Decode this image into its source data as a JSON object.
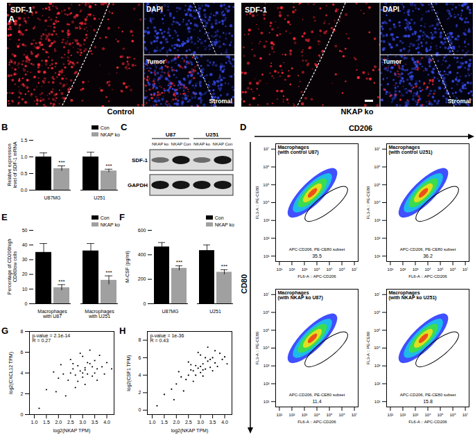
{
  "panel_labels": [
    "A",
    "B",
    "C",
    "D",
    "E",
    "F",
    "G",
    "H"
  ],
  "panel_A": {
    "images": [
      {
        "channel": "SDF-1",
        "inset": "DAPI",
        "regions": [
          "Tumor",
          "Stromal"
        ],
        "caption": "Control"
      },
      {
        "channel": "SDF-1",
        "inset": "DAPI",
        "regions": [
          "Tumor",
          "Stromal"
        ],
        "caption": "NKAP ko"
      }
    ]
  },
  "panel_C": {
    "cell_lines": [
      "U87",
      "U251"
    ],
    "lanes": [
      "NKAP ko",
      "NKAP Con",
      "NKAP ko",
      "NKAP Con"
    ],
    "rows": [
      "SDF-1",
      "GAPDH"
    ]
  },
  "panel_D": {
    "x_marker": "CD206",
    "y_marker": "CD80",
    "xlabel": "FL6-A :: APC-CD206",
    "ylabel": "FL3-A :: PE-CE80",
    "gate": "APC-CD206, PE-CE80 subset",
    "log": true,
    "xlim": [
      5,
      20000000
    ],
    "ylim": [
      5,
      20000000
    ],
    "xticks": [
      {
        "value": 10,
        "label": "10¹"
      },
      {
        "value": 100,
        "label": "10²"
      },
      {
        "value": 1000,
        "label": "10³"
      },
      {
        "value": 10000,
        "label": "10⁴"
      },
      {
        "value": 100000,
        "label": "10⁵"
      },
      {
        "value": 1000000,
        "label": "10⁶"
      },
      {
        "value": 10000000,
        "label": "10⁷"
      }
    ],
    "yticks": [
      {
        "value": 10,
        "label": "10¹"
      },
      {
        "value": 100,
        "label": "10²"
      },
      {
        "value": 1000,
        "label": "10³"
      },
      {
        "value": 10000,
        "label": "10⁴"
      },
      {
        "value": 100000,
        "label": "10⁵"
      },
      {
        "value": 1000000,
        "label": "10⁶"
      },
      {
        "value": 10000000,
        "label": "10⁷"
      }
    ],
    "plots": [
      {
        "title": "Macrophages",
        "subtitle": "(with control U87)",
        "percent": 35.5
      },
      {
        "title": "Macrophages",
        "subtitle": "(with control U251)",
        "percent": 36.2
      },
      {
        "title": "Macrophages",
        "subtitle": "(with NKAP ko U87)",
        "percent": 11.4
      },
      {
        "title": "Macrophages",
        "subtitle": "(with NKAP ko U251)",
        "percent": 15.8
      }
    ]
  },
  "chart_data": [
    {
      "type": "bar",
      "categories": [
        "U87MG",
        "U251"
      ],
      "series": [
        {
          "name": "Con",
          "color": "#000000",
          "values": [
            1.0,
            1.0
          ],
          "errors": [
            0.12,
            0.14
          ]
        },
        {
          "name": "NKAP ko",
          "color": "#a0a0a0",
          "values": [
            0.65,
            0.58
          ],
          "errors": [
            0.08,
            0.05
          ],
          "annotations": [
            "***",
            "***"
          ]
        }
      ],
      "ylabel": "Relative expression level of SDF-1 mRNA",
      "ylim": [
        0,
        1.5
      ],
      "yticks": [
        {
          "value": 0,
          "label": "0.0"
        },
        0.5,
        {
          "value": 1,
          "label": "1.0"
        },
        1.5
      ],
      "legend": "top-right"
    },
    {
      "type": "bar",
      "categories": [
        "Macrophages with U87",
        "Macrophages with U251"
      ],
      "series": [
        {
          "name": "Con",
          "color": "#000000",
          "values": [
            35,
            36
          ],
          "errors": [
            6,
            5
          ]
        },
        {
          "name": "NKAP ko",
          "color": "#a0a0a0",
          "values": [
            11,
            16
          ],
          "errors": [
            2,
            3
          ],
          "annotations": [
            "***",
            "***"
          ]
        }
      ],
      "ylabel": "Percentage of CD206high CD80low cells",
      "ylim": [
        0,
        50
      ],
      "yticks": [
        0,
        10,
        20,
        30,
        40,
        50
      ],
      "legend": "top-right"
    },
    {
      "type": "bar",
      "categories": [
        "U87MG",
        "U251"
      ],
      "series": [
        {
          "name": "Con",
          "color": "#000000",
          "values": [
            465,
            435
          ],
          "errors": [
            35,
            45
          ]
        },
        {
          "name": "NKAP ko",
          "color": "#a0a0a0",
          "values": [
            290,
            258
          ],
          "errors": [
            20,
            20
          ],
          "annotations": [
            "***",
            "***"
          ]
        }
      ],
      "ylabel": "M-CSF (pg/ml)",
      "ylim": [
        0,
        600
      ],
      "yticks": [
        0,
        200,
        400,
        600
      ],
      "legend": "top-right"
    },
    {
      "type": "scatter",
      "color": "#000000",
      "xlabel": "log2(NKAP TPM)",
      "ylabel": "log2(CXCL12 TPM)",
      "annotations": [
        "p-value = 2.1e-14",
        "R = 0.27"
      ],
      "x": [
        2.9,
        3.1,
        2.7,
        3.3,
        3.0,
        2.5,
        3.5,
        2.8,
        3.2,
        3.6,
        2.4,
        3.0,
        3.4,
        2.6,
        3.8,
        2.2,
        3.1,
        2.9,
        3.7,
        2.0,
        1.8,
        3.3,
        2.7,
        3.9,
        1.5,
        1.2,
        2.3,
        3.5,
        4.0,
        2.8,
        3.2,
        2.6,
        3.0,
        3.4,
        1.9,
        4.2,
        2.1,
        3.6,
        2.5,
        3.1
      ],
      "values": [
        4.2,
        4.5,
        3.8,
        4.9,
        3.6,
        4.0,
        5.2,
        4.7,
        3.9,
        4.4,
        3.3,
        5.6,
        3.7,
        4.9,
        4.6,
        3.9,
        2.9,
        5.9,
        5.7,
        3.5,
        4.1,
        6.2,
        2.6,
        3.9,
        2.4,
        0.6,
        1.8,
        4.0,
        5.0,
        3.2,
        5.0,
        4.4,
        4.0,
        4.6,
        2.2,
        4.4,
        4.8,
        3.3,
        5.3,
        4.3
      ],
      "xlim": [
        0.8,
        4.3
      ],
      "xticks": [
        {
          "value": 1,
          "label": "1.0"
        },
        1.5,
        {
          "value": 2,
          "label": "2.0"
        },
        2.5,
        {
          "value": 3,
          "label": "3.0"
        },
        3.5,
        {
          "value": 4,
          "label": "4.0"
        }
      ],
      "ylim": [
        0,
        8
      ],
      "yticks": [
        0,
        2,
        4,
        6,
        8
      ]
    },
    {
      "type": "scatter",
      "color": "#000000",
      "xlabel": "log2(NKAP TPM)",
      "ylabel": "log2(CSF1 TPM)",
      "annotations": [
        "p-value = 1e-36",
        "R = 0.43"
      ],
      "x": [
        2.9,
        3.1,
        2.7,
        3.3,
        3.0,
        2.5,
        3.5,
        2.8,
        3.2,
        3.6,
        2.4,
        3.0,
        3.4,
        2.6,
        3.8,
        2.2,
        3.1,
        2.9,
        3.7,
        2.0,
        1.8,
        3.3,
        2.7,
        3.9,
        1.5,
        1.2,
        2.3,
        3.5,
        4.0,
        2.8,
        3.2,
        2.6,
        3.0,
        3.4,
        1.9,
        4.1,
        2.1,
        3.6,
        2.5,
        3.1
      ],
      "values": [
        4.8,
        5.3,
        4.5,
        5.6,
        4.3,
        4.0,
        6.0,
        5.1,
        4.7,
        5.4,
        3.5,
        6.3,
        4.9,
        5.2,
        6.5,
        3.8,
        3.9,
        6.6,
        5.0,
        3.0,
        2.4,
        7.2,
        3.3,
        5.8,
        1.8,
        0.5,
        2.2,
        4.5,
        6.1,
        4.0,
        6.0,
        4.6,
        5.0,
        5.8,
        1.2,
        5.3,
        4.4,
        6.8,
        5.5,
        4.6
      ],
      "xlim": [
        0.8,
        4.3
      ],
      "xticks": [
        {
          "value": 1,
          "label": "1.0"
        },
        1.5,
        {
          "value": 2,
          "label": "2.0"
        },
        2.5,
        {
          "value": 3,
          "label": "3.0"
        },
        3.5,
        {
          "value": 4,
          "label": "4.0"
        }
      ],
      "ylim": [
        -0.5,
        9
      ],
      "yticks": [
        0,
        2,
        4,
        6,
        8
      ]
    }
  ]
}
